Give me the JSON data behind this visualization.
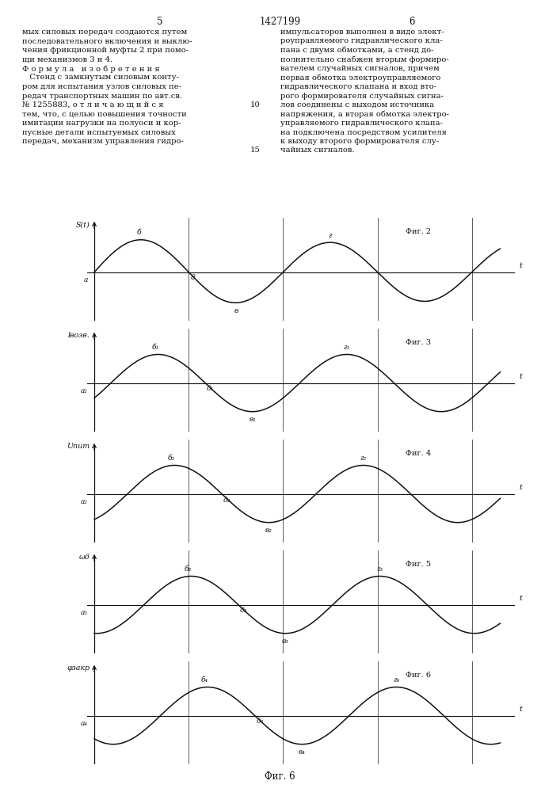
{
  "line_color": "#111111",
  "grid_color": "#444444",
  "bg_color": "#ffffff",
  "text_color": "#111111",
  "ylabels": [
    "S(t)",
    "lвозв.",
    "Uпит",
    "ωд",
    "φзакр"
  ],
  "fig_labels": [
    "Фиг. 2",
    "Фиг. 3",
    "Фиг. 4",
    "Фиг. 5",
    "Фиг. 6"
  ],
  "a_labels": [
    "а",
    "а₁",
    "а₂",
    "а₃",
    "а₄"
  ],
  "b_labels": [
    "б",
    "б₁",
    "б₂",
    "б₃",
    "б₄"
  ],
  "v_labels": [
    "в",
    "в₁",
    "в₂",
    "в₃",
    "в₄"
  ],
  "g_labels": [
    "г",
    "г₁",
    "г₂",
    "г₃",
    "г₄"
  ],
  "d_labels": [
    "д",
    "д₁",
    "д₂",
    "д₃",
    "д₄"
  ],
  "left_text": [
    "мых силовых передач создаются путем",
    "последовательного включения и выклю-",
    "чения фрикционной муфты 2 при помо-",
    "щи механизмов 3 и 4.",
    "Ф о р м у л а   и з о б р е т е н и я",
    "   Стенд с замкнутым силовым конту-",
    "ром для испытания узлов силовых пе-",
    "редач транспортных машин по авт.св.",
    "№ 1255883, о т л и ч а ю щ и й с я",
    "тем, что, с целью повышения точности",
    "имитации нагрузки на полуоси и кор-",
    "пусные детали испытуемых силовых",
    "передач, механизм управления гидро-"
  ],
  "right_text": [
    "импульсаторов выполнен в виде элект-",
    "роуправляемого гидравлического кла-",
    "пана с двумя обмотками, а стенд до-",
    "полнительно снабжен вторым формиро-",
    "вателем случайных сигналов, причем",
    "первая обмотка электроуправляемого",
    "гидравлического клапана и вход вто-",
    "рого формирователя случайных сигна-",
    "лов соединены с выходом источника",
    "напряжения, а вторая обмотка электро-",
    "управляемого гидравлического клапа-",
    "на подключена посредством усилителя",
    "к выходу второго формирователя слу-",
    "чайных сигналов."
  ]
}
